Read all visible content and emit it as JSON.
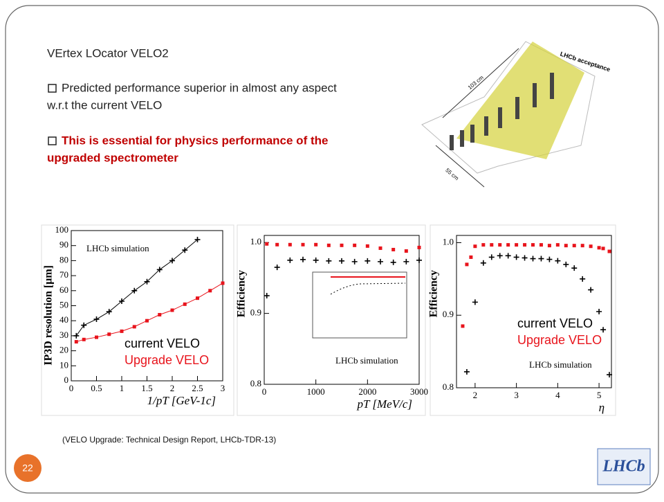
{
  "slide": {
    "title": "VErtex LOcator VELO2",
    "bullets": [
      [
        "Predicted performance superior in almost any aspect",
        "w.r.t the current VELO"
      ],
      [
        "This is essential for physics performance of the",
        "upgraded spectrometer"
      ]
    ],
    "detector_labels": [
      "LHCb acceptance",
      "103 cm",
      "55 cm"
    ],
    "caption": "(VELO Upgrade: Technical Design Report, LHCb-TDR-13)",
    "page_number": "22",
    "logo": "LHCb"
  },
  "chart_data": [
    {
      "type": "scatter",
      "xlabel": "1/pT [GeV-1c]",
      "ylabel": "IP3D resolution [μm]",
      "annotation": "LHCb simulation",
      "x": [
        0.1,
        0.25,
        0.5,
        0.75,
        1,
        1.25,
        1.5,
        1.75,
        2,
        2.25,
        2.5,
        2.75,
        3
      ],
      "series": [
        {
          "name": "current VELO",
          "color": "#000000",
          "values": [
            30,
            37,
            41,
            46,
            53,
            60,
            66,
            74,
            80,
            87,
            94,
            null,
            null
          ]
        },
        {
          "name": "Upgrade VELO",
          "color": "#e8141c",
          "values": [
            26,
            27.5,
            29,
            31,
            33,
            36,
            40,
            44,
            47,
            51,
            55,
            60,
            65
          ]
        }
      ],
      "xlim": [
        0,
        3
      ],
      "xticks": [
        0,
        0.5,
        1,
        1.5,
        2,
        2.5,
        3
      ],
      "ylim": [
        0,
        100
      ],
      "yticks": [
        0,
        10,
        20,
        30,
        40,
        50,
        60,
        70,
        80,
        90,
        100
      ],
      "fit_lines": true
    },
    {
      "type": "scatter",
      "xlabel": "pT [MeV/c]",
      "ylabel": "Efficiency",
      "annotation": "LHCb simulation",
      "x": [
        50,
        250,
        500,
        750,
        1000,
        1250,
        1500,
        1750,
        2000,
        2250,
        2500,
        2750,
        3000
      ],
      "series": [
        {
          "name": "current VELO",
          "color": "#000000",
          "values": [
            0.925,
            0.965,
            0.975,
            0.976,
            0.975,
            0.974,
            0.974,
            0.973,
            0.974,
            0.973,
            0.972,
            0.973,
            0.975
          ]
        },
        {
          "name": "Upgrade VELO",
          "color": "#e8141c",
          "values": [
            0.998,
            0.997,
            0.997,
            0.997,
            0.997,
            0.996,
            0.996,
            0.996,
            0.995,
            0.992,
            0.99,
            0.988,
            0.993
          ]
        }
      ],
      "xlim": [
        0,
        3000
      ],
      "xticks": [
        0,
        1000,
        2000,
        3000
      ],
      "ylim": [
        0.8,
        1.01
      ],
      "yticks": [
        0.8,
        0.9,
        {
          "value": 1,
          "label": "1.0"
        }
      ],
      "fit_lines": false
    },
    {
      "type": "scatter",
      "xlabel": "η",
      "ylabel": "Efficiency",
      "annotation": "LHCb simulation",
      "x": [
        1.7,
        1.8,
        1.9,
        2.0,
        2.2,
        2.4,
        2.6,
        2.8,
        3.0,
        3.2,
        3.4,
        3.6,
        3.8,
        4.0,
        4.2,
        4.4,
        4.6,
        4.8,
        5.0,
        5.1,
        5.25
      ],
      "series": [
        {
          "name": "current VELO",
          "color": "#000000",
          "values": [
            null,
            0.822,
            null,
            0.918,
            0.972,
            0.98,
            0.982,
            0.982,
            0.98,
            0.979,
            0.978,
            0.978,
            0.977,
            0.975,
            0.97,
            0.965,
            0.95,
            0.935,
            0.905,
            0.88,
            0.818
          ]
        },
        {
          "name": "Upgrade VELO",
          "color": "#e8141c",
          "values": [
            0.885,
            0.97,
            0.98,
            0.995,
            0.997,
            0.997,
            0.997,
            0.997,
            0.997,
            0.997,
            0.997,
            0.997,
            0.996,
            0.997,
            0.996,
            0.996,
            0.996,
            0.995,
            0.993,
            0.992,
            0.988
          ]
        }
      ],
      "xlim": [
        1.55,
        5.3
      ],
      "xticks": [
        2,
        3,
        4,
        5
      ],
      "ylim": [
        0.8,
        1.01
      ],
      "yticks": [
        0.8,
        0.9,
        {
          "value": 1,
          "label": "1.0"
        }
      ],
      "fit_lines": false
    }
  ]
}
